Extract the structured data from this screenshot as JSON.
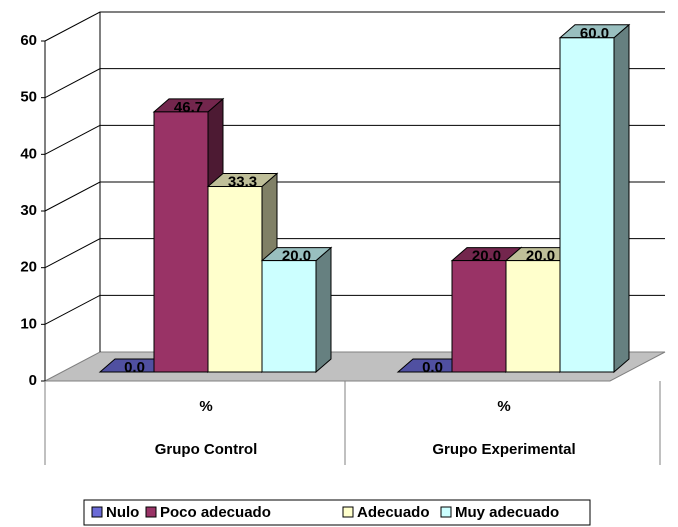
{
  "chart_data": {
    "type": "bar3d",
    "categories": [
      "Grupo Control",
      "Grupo Experimental"
    ],
    "category_units": [
      "%",
      "%"
    ],
    "series": [
      {
        "name": "Nulo",
        "color": "#6b6bd6",
        "values": [
          0,
          0
        ],
        "value_labels": [
          "0.0",
          "0.0"
        ]
      },
      {
        "name": "Poco adecuado",
        "color": "#993366",
        "values": [
          46.7,
          20
        ],
        "value_labels": [
          "46.7",
          "20.0"
        ]
      },
      {
        "name": "Adecuado",
        "color": "#ffffcc",
        "values": [
          33.3,
          20
        ],
        "value_labels": [
          "33.3",
          "20.0"
        ]
      },
      {
        "name": "Muy adecuado",
        "color": "#ccffff",
        "values": [
          20,
          60
        ],
        "value_labels": [
          "20.0",
          "60.0"
        ]
      }
    ],
    "ylim": [
      0,
      60
    ],
    "yticks": [
      0,
      10,
      20,
      30,
      40,
      50,
      60
    ],
    "grid": true,
    "legend": "bottom"
  }
}
